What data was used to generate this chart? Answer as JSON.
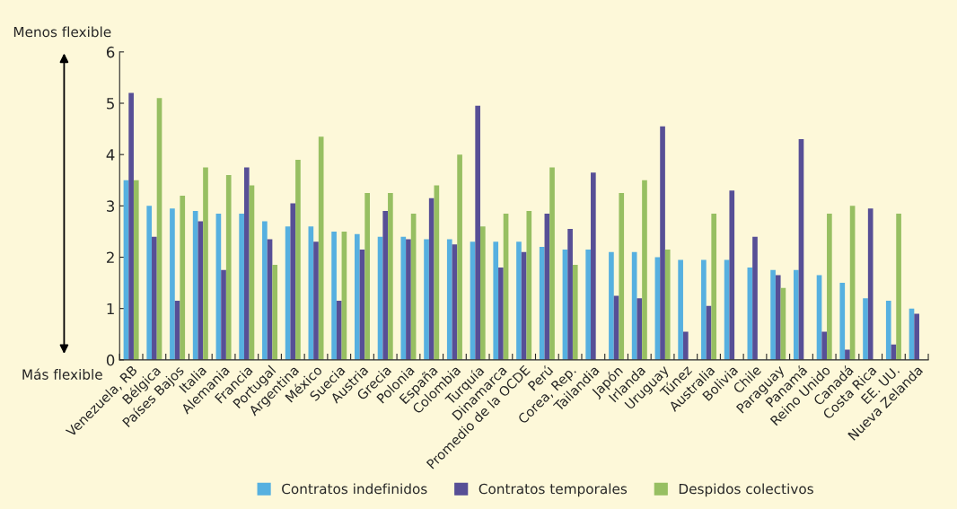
{
  "chart_data": {
    "type": "bar",
    "categories": [
      "Venezuela, RB",
      "Bélgica",
      "Países Bajos",
      "Italia",
      "Alemania",
      "Francia",
      "Portugal",
      "Argentina",
      "México",
      "Suecia",
      "Austria",
      "Grecia",
      "Polonia",
      "España",
      "Colombia",
      "Turquía",
      "Dinamarca",
      "Promedio de la OCDE",
      "Perú",
      "Corea, Rep.",
      "Tailandia",
      "Japón",
      "Irlanda",
      "Uruguay",
      "Túnez",
      "Australia",
      "Bolivia",
      "Chile",
      "Paraguay",
      "Panamá",
      "Reino Unido",
      "Canadá",
      "Costa Rica",
      "EE. UU.",
      "Nueva Zelanda"
    ],
    "series": [
      {
        "name": "Contratos indefinidos",
        "color": "#56b0e0",
        "values": [
          3.5,
          3.0,
          2.95,
          2.9,
          2.85,
          2.85,
          2.7,
          2.6,
          2.6,
          2.5,
          2.45,
          2.4,
          2.4,
          2.35,
          2.35,
          2.3,
          2.3,
          2.3,
          2.2,
          2.15,
          2.15,
          2.1,
          2.1,
          2.0,
          1.95,
          1.95,
          1.95,
          1.8,
          1.75,
          1.75,
          1.65,
          1.5,
          1.2,
          1.15,
          1.0
        ]
      },
      {
        "name": "Contratos temporales",
        "color": "#574f96",
        "values": [
          5.2,
          2.4,
          1.15,
          2.7,
          1.75,
          3.75,
          2.35,
          3.05,
          2.3,
          1.15,
          2.15,
          2.9,
          2.35,
          3.15,
          2.25,
          4.95,
          1.8,
          2.1,
          2.85,
          2.55,
          3.65,
          1.25,
          1.2,
          4.55,
          0.55,
          1.05,
          3.3,
          2.4,
          1.65,
          4.3,
          0.55,
          0.2,
          2.95,
          0.3,
          0.9
        ]
      },
      {
        "name": "Despidos colectivos",
        "color": "#97bf62",
        "values": [
          3.5,
          5.1,
          3.2,
          3.75,
          3.6,
          3.4,
          1.85,
          3.9,
          4.35,
          2.5,
          3.25,
          3.25,
          2.85,
          3.4,
          4.0,
          2.6,
          2.85,
          2.9,
          3.75,
          1.85,
          null,
          3.25,
          3.5,
          2.15,
          null,
          2.85,
          null,
          null,
          1.4,
          null,
          2.85,
          3.0,
          null,
          2.85,
          null
        ]
      }
    ],
    "ylim": [
      0,
      6
    ],
    "yticks": [
      0,
      1,
      2,
      3,
      4,
      5,
      6
    ],
    "annotations": [
      "Menos flexible",
      "Más flexible"
    ],
    "grid": false,
    "legend": "bottom"
  }
}
